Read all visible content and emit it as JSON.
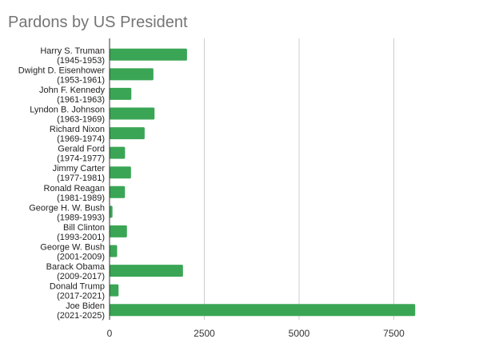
{
  "chart_data": {
    "type": "bar",
    "orientation": "horizontal",
    "title": "Pardons by US President",
    "xlabel": "",
    "ylabel": "",
    "categories": [
      [
        "Harry S. Truman",
        "(1945-1953)"
      ],
      [
        "Dwight D. Eisenhower",
        "(1953-1961)"
      ],
      [
        "John F. Kennedy",
        "(1961-1963)"
      ],
      [
        "Lyndon B. Johnson",
        "(1963-1969)"
      ],
      [
        "Richard Nixon",
        "(1969-1974)"
      ],
      [
        "Gerald Ford",
        "(1974-1977)"
      ],
      [
        "Jimmy Carter",
        "(1977-1981)"
      ],
      [
        "Ronald Reagan",
        "(1981-1989)"
      ],
      [
        "George H. W. Bush",
        "(1989-1993)"
      ],
      [
        "Bill Clinton",
        "(1993-2001)"
      ],
      [
        "George W. Bush",
        "(2001-2009)"
      ],
      [
        "Barack Obama",
        "(2009-2017)"
      ],
      [
        "Donald Trump",
        "(2017-2021)"
      ],
      [
        "Joe Biden",
        "(2021-2025)"
      ]
    ],
    "values": [
      2044,
      1157,
      575,
      1187,
      926,
      409,
      566,
      406,
      77,
      459,
      200,
      1937,
      238,
      8064
    ],
    "xlim": [
      0,
      10000
    ],
    "xticks": [
      "0",
      "2500",
      "5000",
      "7500",
      "1"
    ],
    "grid": true,
    "legend": "none",
    "bar_color": "#3aa655",
    "grid_color": "#cccccc",
    "title_color": "#757575",
    "axis_color": "#333333"
  }
}
